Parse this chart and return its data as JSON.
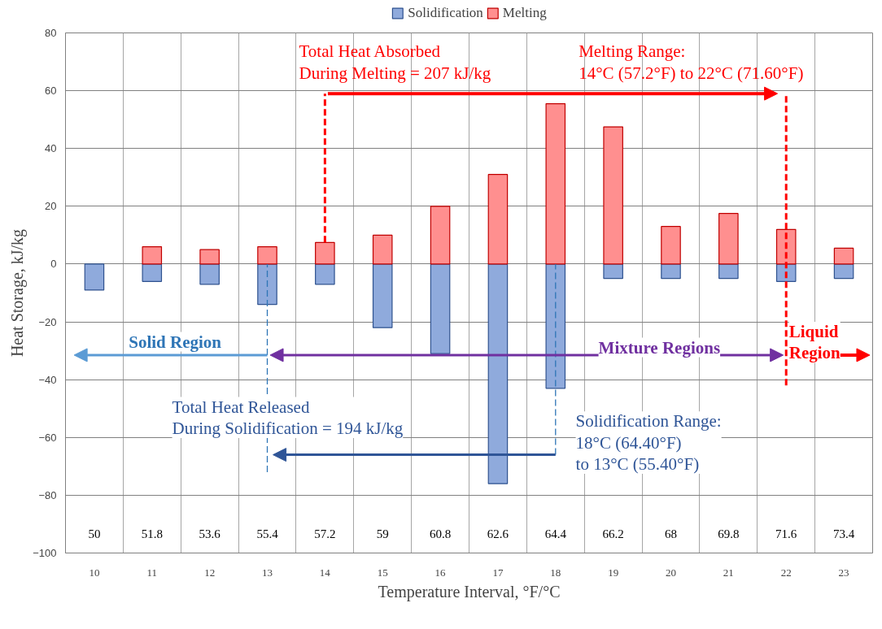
{
  "chart_data": {
    "type": "bar",
    "xlabel": "Temperature Interval, °F/°C",
    "ylabel": "Heat Storage, kJ/kg",
    "categories": [
      "10",
      "11",
      "12",
      "13",
      "14",
      "15",
      "16",
      "17",
      "18",
      "19",
      "20",
      "21",
      "22",
      "23"
    ],
    "series": [
      {
        "name": "Solidification",
        "color": "#8faadc",
        "values": [
          -9,
          -6,
          -7,
          -14,
          -7,
          -22,
          -31,
          -76,
          -43,
          -5,
          -5,
          -5,
          -6,
          -5
        ]
      },
      {
        "name": "Melting",
        "color": "#ff8f8f",
        "values": [
          null,
          6,
          5,
          6,
          7.5,
          10,
          20,
          31,
          55.5,
          47.5,
          13,
          17.5,
          12,
          5.5
        ]
      }
    ],
    "stacked": true,
    "ylim": [
      -100,
      80
    ],
    "yticks": [
      -100,
      -80,
      -60,
      -40,
      -20,
      0,
      20,
      40,
      60,
      80
    ],
    "grid": true,
    "legend": "top",
    "ref_lines": [
      {
        "axis": "x",
        "value": "14",
        "color": "#ff0000",
        "line_style": "dashed"
      },
      {
        "axis": "x",
        "value": "22",
        "color": "#ff0000",
        "line_style": "dashed"
      },
      {
        "axis": "x",
        "value": "13",
        "color": "#2e75b6",
        "line_style": "dashed"
      },
      {
        "axis": "x",
        "value": "18",
        "color": "#2e75b6",
        "line_style": "dashed"
      }
    ],
    "annotations": [
      "50",
      "51.8",
      "53.6",
      "55.4",
      "57.2",
      "59",
      "60.8",
      "62.6",
      "64.4",
      "66.2",
      "68",
      "69.8",
      "71.6",
      "73.4",
      "Total Heat Absorbed\nDuring Melting = 207 kJ/kg",
      "Melting Range:\n14°C (57.2°F) to 22°C (71.60°F)",
      "Solid Region",
      "Mixture Regions",
      "Liquid\nRegion",
      {
        "text": "Total Heat Released\nDuring Solidification = 194 kJ/kg",
        "x": "13",
        "y": -66
      },
      "Solidification Range:\n 18°C (64.40°F)\nto 13°C (55.40°F)"
    ]
  }
}
